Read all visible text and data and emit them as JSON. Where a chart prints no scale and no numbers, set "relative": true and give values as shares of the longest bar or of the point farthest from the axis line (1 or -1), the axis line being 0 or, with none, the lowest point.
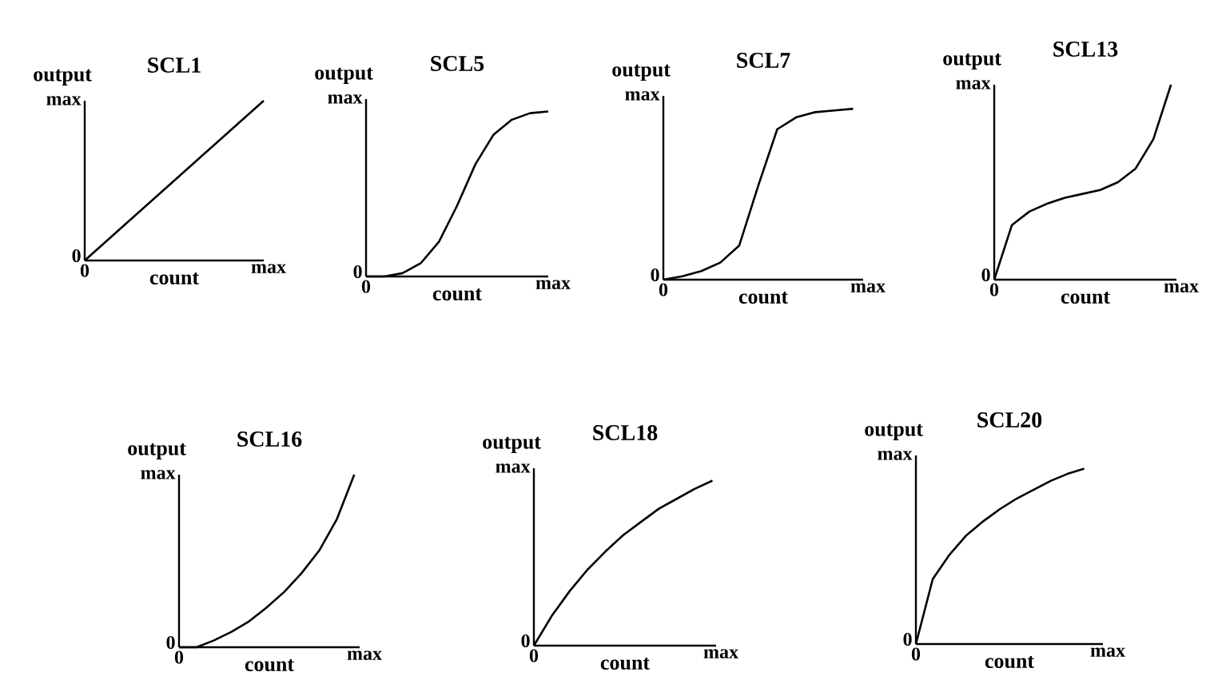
{
  "chart_data": [
    {
      "type": "line",
      "title": "SCL1",
      "xlabel": "count",
      "ylabel": "output",
      "relative": true,
      "marker": "none",
      "annotations": [
        "max",
        "0",
        "0",
        "max"
      ],
      "categories": [
        null,
        null,
        null,
        null,
        null,
        null,
        null,
        null,
        null,
        null,
        null
      ],
      "series": [
        {
          "color": "#000000",
          "values": [
            0,
            0.1,
            0.2,
            0.3,
            0.4,
            0.5,
            0.6,
            0.7,
            0.8,
            0.9,
            1
          ]
        }
      ]
    },
    {
      "type": "line",
      "title": "SCL5",
      "xlabel": "count",
      "ylabel": "output",
      "relative": true,
      "marker": "none",
      "annotations": [
        "max",
        "0",
        "0",
        "max"
      ],
      "categories": [
        null,
        null,
        null,
        null,
        null,
        null,
        null,
        null,
        null,
        null,
        null
      ],
      "series": [
        {
          "color": "#000000",
          "values": [
            0,
            0,
            0.02,
            0.08,
            0.21,
            0.43,
            0.68,
            0.86,
            0.95,
            0.99,
            1
          ]
        }
      ]
    },
    {
      "type": "line",
      "title": "SCL7",
      "xlabel": "count",
      "ylabel": "output",
      "relative": true,
      "marker": "none",
      "annotations": [
        "max",
        "0",
        "0",
        "max"
      ],
      "categories": [
        null,
        null,
        null,
        null,
        null,
        null,
        null,
        null,
        null,
        null,
        null
      ],
      "series": [
        {
          "color": "#000000",
          "values": [
            0,
            0.02,
            0.05,
            0.1,
            0.2,
            0.55,
            0.88,
            0.95,
            0.98,
            0.99,
            1
          ]
        }
      ]
    },
    {
      "type": "line",
      "title": "SCL13",
      "xlabel": "count",
      "ylabel": "output",
      "relative": true,
      "marker": "none",
      "annotations": [
        "max",
        "0",
        "0",
        "max"
      ],
      "categories": [
        null,
        null,
        null,
        null,
        null,
        null,
        null,
        null,
        null,
        null,
        null
      ],
      "series": [
        {
          "color": "#000000",
          "values": [
            0,
            0.28,
            0.35,
            0.39,
            0.42,
            0.44,
            0.46,
            0.5,
            0.57,
            0.72,
            1
          ]
        }
      ]
    },
    {
      "type": "line",
      "title": "SCL16",
      "xlabel": "count",
      "ylabel": "output",
      "relative": true,
      "marker": "none",
      "annotations": [
        "max",
        "0",
        "0",
        "max"
      ],
      "categories": [
        null,
        null,
        null,
        null,
        null,
        null,
        null,
        null,
        null,
        null,
        null
      ],
      "series": [
        {
          "color": "#000000",
          "values": [
            0,
            0,
            0.04,
            0.09,
            0.15,
            0.23,
            0.32,
            0.43,
            0.56,
            0.74,
            1
          ]
        }
      ]
    },
    {
      "type": "line",
      "title": "SCL18",
      "xlabel": "count",
      "ylabel": "output",
      "relative": true,
      "marker": "none",
      "annotations": [
        "max",
        "0",
        "0",
        "max"
      ],
      "categories": [
        null,
        null,
        null,
        null,
        null,
        null,
        null,
        null,
        null,
        null,
        null
      ],
      "series": [
        {
          "color": "#000000",
          "values": [
            0,
            0.18,
            0.33,
            0.46,
            0.57,
            0.67,
            0.75,
            0.83,
            0.89,
            0.95,
            1
          ]
        }
      ]
    },
    {
      "type": "line",
      "title": "SCL20",
      "xlabel": "count",
      "ylabel": "output",
      "relative": true,
      "marker": "none",
      "annotations": [
        "max",
        "0",
        "0",
        "max"
      ],
      "categories": [
        null,
        null,
        null,
        null,
        null,
        null,
        null,
        null,
        null,
        null,
        null
      ],
      "series": [
        {
          "color": "#000000",
          "values": [
            0,
            0.37,
            0.51,
            0.62,
            0.7,
            0.77,
            0.83,
            0.88,
            0.93,
            0.97,
            1
          ]
        }
      ]
    }
  ]
}
